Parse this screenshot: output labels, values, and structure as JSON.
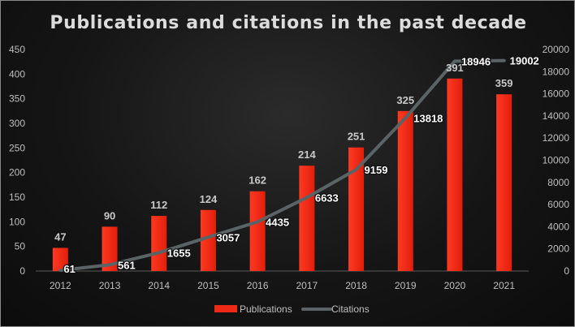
{
  "chart_data": {
    "type": "bar+line",
    "title": "Publications and citations in the past decade",
    "categories": [
      "2012",
      "2013",
      "2014",
      "2015",
      "2016",
      "2017",
      "2018",
      "2019",
      "2020",
      "2021"
    ],
    "series": [
      {
        "name": "Publications",
        "type": "bar",
        "axis": "left",
        "color": "#ee2a16",
        "values": [
          47,
          90,
          112,
          124,
          162,
          214,
          251,
          325,
          391,
          359
        ]
      },
      {
        "name": "Citations",
        "type": "line",
        "axis": "right",
        "color": "#5a6466",
        "values": [
          61,
          561,
          1655,
          3057,
          4435,
          6633,
          9159,
          13818,
          18946,
          19002
        ]
      }
    ],
    "y_left": {
      "min": 0,
      "max": 450,
      "ticks": [
        0,
        50,
        100,
        150,
        200,
        250,
        300,
        350,
        400,
        450
      ]
    },
    "y_right": {
      "min": 0,
      "max": 20000,
      "ticks": [
        0,
        2000,
        4000,
        6000,
        8000,
        10000,
        12000,
        14000,
        16000,
        18000,
        20000
      ]
    },
    "grid": false,
    "legend": "bottom-center"
  }
}
